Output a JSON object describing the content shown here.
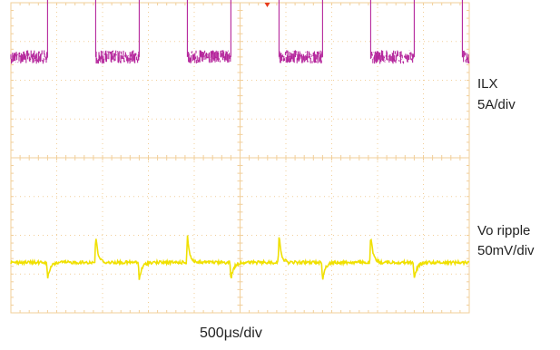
{
  "chart_data": {
    "type": "line",
    "xlabel": "500μs/div",
    "x_divisions": 10,
    "y_divisions": 8,
    "grid": true,
    "trigger_marker": true,
    "series": [
      {
        "name": "ILX",
        "scale": "5A/div",
        "color": "#b5269c",
        "waveform": "square",
        "x": [
          0.0,
          0.8,
          0.8,
          1.85,
          1.85,
          2.8,
          2.8,
          3.85,
          3.85,
          4.8,
          4.8,
          5.85,
          5.85,
          6.8,
          6.8,
          7.85,
          7.85,
          8.8,
          8.8,
          9.85,
          9.85,
          10.0
        ],
        "y_div": [
          2.6,
          2.6,
          5.5,
          5.5,
          2.6,
          2.6,
          5.5,
          5.5,
          2.6,
          2.6,
          5.5,
          5.5,
          2.6,
          2.6,
          5.5,
          5.5,
          2.6,
          2.6,
          5.5,
          5.5,
          2.6,
          2.6
        ],
        "noise_band_div": 0.35
      },
      {
        "name": "Vo ripple",
        "scale": "50mV/div",
        "color": "#f0e000",
        "waveform": "ripple",
        "baseline_div": -2.7,
        "spike_up_x": [
          1.85,
          3.85,
          5.85,
          7.85
        ],
        "spike_up_div": 0.7,
        "spike_down_x": [
          0.8,
          2.8,
          4.8,
          6.8,
          8.8
        ],
        "spike_down_div": -0.45,
        "noise_band_div": 0.08
      }
    ]
  }
}
